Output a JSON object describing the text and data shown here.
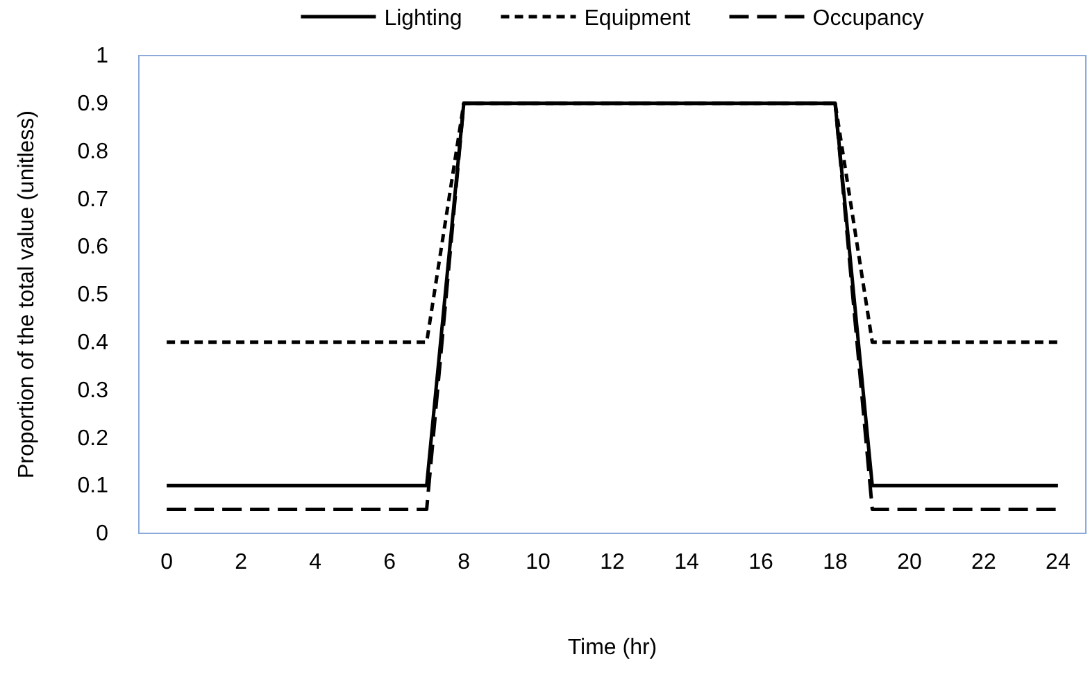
{
  "chart_data": {
    "type": "line",
    "xlabel": "Time (hr)",
    "ylabel": "Proportion of the total value (unitless)",
    "x": [
      0,
      7,
      8,
      18,
      19,
      24
    ],
    "series": [
      {
        "name": "Lighting",
        "color": "#000000",
        "line_style": "solid",
        "values": [
          0.1,
          0.1,
          0.9,
          0.9,
          0.1,
          0.1
        ]
      },
      {
        "name": "Equipment",
        "color": "#000000",
        "line_style": "dotted",
        "values": [
          0.4,
          0.4,
          0.9,
          0.9,
          0.4,
          0.4
        ]
      },
      {
        "name": "Occupancy",
        "color": "#000000",
        "line_style": "dashed",
        "values": [
          0.05,
          0.05,
          0.9,
          0.9,
          0.05,
          0.05
        ]
      }
    ],
    "xlim": [
      -0.75,
      24.75
    ],
    "xticks": [
      0,
      2,
      4,
      6,
      8,
      10,
      12,
      14,
      16,
      18,
      20,
      22,
      24
    ],
    "ylim": [
      0,
      1
    ],
    "yticks": [
      0,
      0.1,
      0.2,
      0.3,
      0.4,
      0.5,
      0.6,
      0.7,
      0.8,
      0.9,
      1
    ],
    "grid": false,
    "legend": "top",
    "marker": "none"
  }
}
